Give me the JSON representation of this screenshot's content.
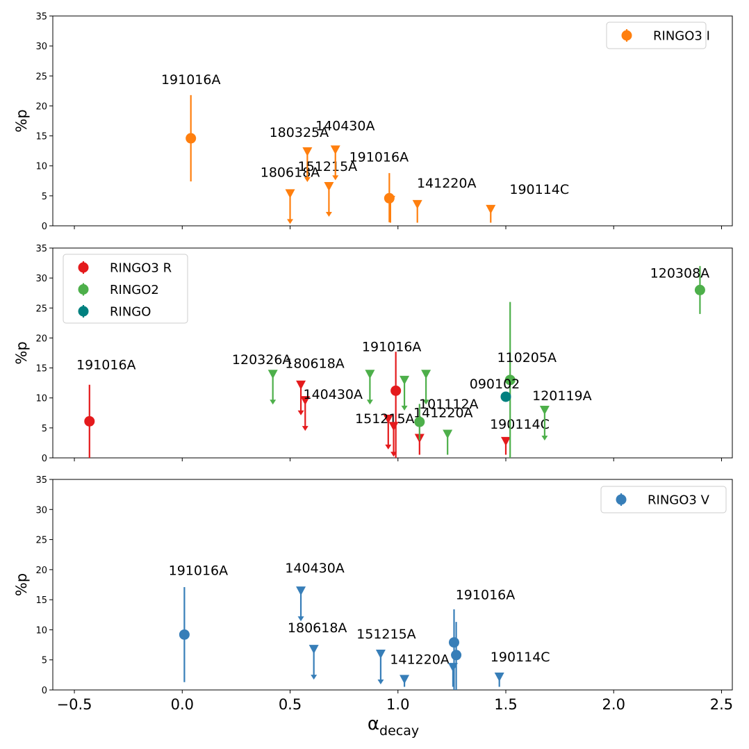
{
  "chart_data": [
    {
      "type": "scatter",
      "title": "",
      "xlabel": "",
      "ylabel": "%p",
      "xlim": [
        -0.6,
        2.55
      ],
      "ylim": [
        0,
        35
      ],
      "yticks": [
        "0",
        "5",
        "10",
        "15",
        "20",
        "25",
        "30",
        "35"
      ],
      "xticks": [
        "",
        "",
        "",
        "",
        "",
        "",
        ""
      ],
      "legend_position": "upper right",
      "series": [
        {
          "name": "RINGO3 I",
          "color": "#ff7f0e",
          "points": [
            {
              "label": "191016A",
              "x": 0.04,
              "y": 14.6,
              "err_lo": 7.2,
              "err_hi": 7.2
            },
            {
              "label": "191016A",
              "x": 0.96,
              "y": 4.6,
              "err_lo": 4.0,
              "err_hi": 4.2
            }
          ],
          "upper_limits": [
            {
              "label": "180618A",
              "x": 0.5,
              "y": 5.4
            },
            {
              "label": "180325A",
              "x": 0.58,
              "y": 12.4
            },
            {
              "label": "151215A",
              "x": 0.68,
              "y": 6.6
            },
            {
              "label": "140430A",
              "x": 0.71,
              "y": 12.7
            },
            {
              "label": "",
              "x": 0.965,
              "y": 4.3
            },
            {
              "label": "141220A",
              "x": 1.09,
              "y": 3.6
            },
            {
              "label": "190114C",
              "x": 1.43,
              "y": 2.8
            }
          ]
        }
      ]
    },
    {
      "type": "scatter",
      "title": "",
      "xlabel": "",
      "ylabel": "%p",
      "xlim": [
        -0.6,
        2.55
      ],
      "ylim": [
        0,
        35
      ],
      "yticks": [
        "0",
        "5",
        "10",
        "15",
        "20",
        "25",
        "30",
        "35"
      ],
      "xticks": [
        "",
        "",
        "",
        "",
        "",
        "",
        ""
      ],
      "legend_position": "upper left",
      "series": [
        {
          "name": "RINGO3 R",
          "color": "#e41a1c",
          "points": [
            {
              "label": "191016A",
              "x": -0.43,
              "y": 6.1,
              "err_lo": 6.1,
              "err_hi": 6.1
            },
            {
              "label": "191016A",
              "x": 0.99,
              "y": 11.2,
              "err_lo": 11.2,
              "err_hi": 6.5
            }
          ],
          "upper_limits": [
            {
              "label": "180618A",
              "x": 0.55,
              "y": 12.2
            },
            {
              "label": "140430A",
              "x": 0.57,
              "y": 9.6
            },
            {
              "label": "151215A",
              "x": 0.955,
              "y": 6.5
            },
            {
              "label": "",
              "x": 0.98,
              "y": 5.3
            },
            {
              "label": "141220A",
              "x": 1.1,
              "y": 3.3
            },
            {
              "label": "190114C",
              "x": 1.5,
              "y": 2.8
            }
          ]
        },
        {
          "name": "RINGO2",
          "color": "#4daf4a",
          "points": [
            {
              "label": "101112A",
              "x": 1.1,
              "y": 6.0,
              "err_lo": 3.0,
              "err_hi": 3.0
            },
            {
              "label": "110205A",
              "x": 1.52,
              "y": 13.0,
              "err_lo": 13.0,
              "err_hi": 13.0
            },
            {
              "label": "120308A",
              "x": 2.4,
              "y": 28.0,
              "err_lo": 4.0,
              "err_hi": 4.0
            }
          ],
          "upper_limits": [
            {
              "label": "120326A",
              "x": 0.42,
              "y": 14.0
            },
            {
              "label": "",
              "x": 0.87,
              "y": 14.0
            },
            {
              "label": "",
              "x": 1.03,
              "y": 13.0
            },
            {
              "label": "",
              "x": 1.13,
              "y": 14.0
            },
            {
              "label": "",
              "x": 1.23,
              "y": 4.0
            },
            {
              "label": "120119A",
              "x": 1.68,
              "y": 8.0
            }
          ]
        },
        {
          "name": "RINGO",
          "color": "#00807f",
          "points": [
            {
              "label": "090102",
              "x": 1.5,
              "y": 10.2,
              "err_lo": 0.8,
              "err_hi": 0.8
            }
          ],
          "upper_limits": []
        }
      ]
    },
    {
      "type": "scatter",
      "title": "",
      "xlabel": "α_decay",
      "ylabel": "%p",
      "xlim": [
        -0.6,
        2.55
      ],
      "ylim": [
        0,
        35
      ],
      "yticks": [
        "0",
        "5",
        "10",
        "15",
        "20",
        "25",
        "30",
        "35"
      ],
      "xticks": [
        "−0.5",
        "0.0",
        "0.5",
        "1.0",
        "1.5",
        "2.0",
        "2.5"
      ],
      "legend_position": "upper right",
      "series": [
        {
          "name": "RINGO3 V",
          "color": "#377eb8",
          "points": [
            {
              "label": "191016A",
              "x": 0.01,
              "y": 9.2,
              "err_lo": 7.9,
              "err_hi": 7.9
            },
            {
              "label": "191016A",
              "x": 1.26,
              "y": 7.9,
              "err_lo": 7.9,
              "err_hi": 5.5
            },
            {
              "label": "",
              "x": 1.27,
              "y": 5.8,
              "err_lo": 5.8,
              "err_hi": 5.5
            }
          ],
          "upper_limits": [
            {
              "label": "140430A",
              "x": 0.55,
              "y": 16.5
            },
            {
              "label": "180618A",
              "x": 0.61,
              "y": 6.8
            },
            {
              "label": "151215A",
              "x": 0.92,
              "y": 6.0
            },
            {
              "label": "141220A",
              "x": 1.03,
              "y": 1.8
            },
            {
              "label": "",
              "x": 1.255,
              "y": 3.8
            },
            {
              "label": "190114C",
              "x": 1.47,
              "y": 2.2
            }
          ]
        }
      ]
    }
  ]
}
